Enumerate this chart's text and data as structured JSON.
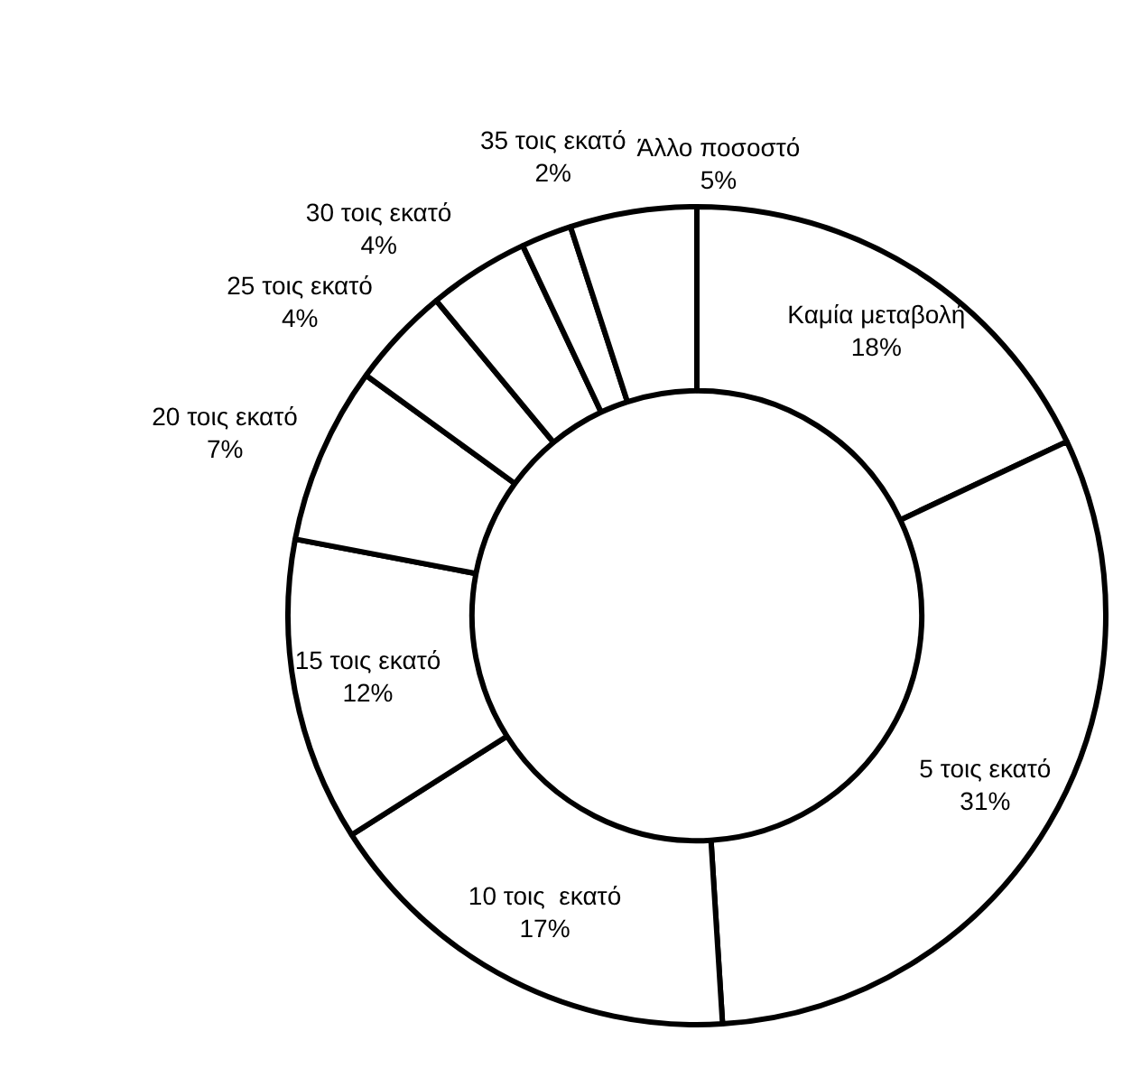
{
  "chart_data": {
    "type": "donut",
    "categories": [
      "Καμία μεταβολή",
      "5 τοις εκατό",
      "10 τοις  εκατό",
      "15 τοις εκατό",
      "20 τοις εκατό",
      "25 τοις εκατό",
      "30 τοις εκατό",
      "35 τοις εκατό",
      "Άλλο ποσοστό"
    ],
    "values": [
      18,
      31,
      17,
      12,
      7,
      4,
      4,
      2,
      5
    ],
    "value_labels": [
      "18%",
      "31%",
      "17%",
      "12%",
      "7%",
      "4%",
      "4%",
      "2%",
      "5%"
    ],
    "colors": [
      "#ffffff",
      "#ffffff",
      "#ffffff",
      "#ffffff",
      "#ffffff",
      "#ffffff",
      "#ffffff",
      "#ffffff",
      "#ffffff"
    ],
    "legend": false
  }
}
